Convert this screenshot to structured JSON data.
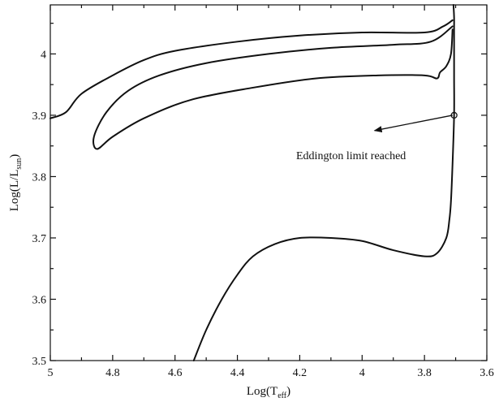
{
  "chart_data": {
    "type": "line",
    "xlabel": "Log(T",
    "xlabel_sub": "eff",
    "xlabel_tail": ")",
    "ylabel": "Log(L/L",
    "ylabel_sub": "sun",
    "ylabel_tail": ")",
    "xlim": [
      5.0,
      3.6
    ],
    "ylim": [
      3.5,
      4.08
    ],
    "x_reversed": true,
    "xticks": [
      5.0,
      4.8,
      4.6,
      4.4,
      4.2,
      4.0,
      3.8,
      3.6
    ],
    "xtick_labels": [
      "5",
      "4.8",
      "4.6",
      "4.4",
      "4.2",
      "4",
      "3.8",
      "3.6"
    ],
    "yticks": [
      3.5,
      3.6,
      3.7,
      3.8,
      3.9,
      4.0
    ],
    "ytick_labels": [
      "3.5",
      "3.6",
      "3.7",
      "3.8",
      "3.9",
      "4"
    ],
    "grid": false,
    "series": [
      {
        "points": [
          [
            4.54,
            3.5
          ],
          [
            4.5,
            3.55
          ],
          [
            4.45,
            3.6
          ],
          [
            4.4,
            3.64
          ],
          [
            4.35,
            3.67
          ],
          [
            4.28,
            3.69
          ],
          [
            4.2,
            3.7
          ],
          [
            4.1,
            3.7
          ],
          [
            4.0,
            3.695
          ],
          [
            3.9,
            3.68
          ],
          [
            3.8,
            3.67
          ],
          [
            3.76,
            3.675
          ],
          [
            3.73,
            3.7
          ],
          [
            3.72,
            3.73
          ],
          [
            3.715,
            3.76
          ],
          [
            3.71,
            3.82
          ],
          [
            3.705,
            3.9
          ],
          [
            3.705,
            3.96
          ],
          [
            3.705,
            4.0
          ],
          [
            3.705,
            4.04
          ],
          [
            3.705,
            4.06
          ],
          [
            3.707,
            4.08
          ]
        ]
      },
      {
        "points": [
          [
            3.71,
            4.055
          ],
          [
            3.74,
            4.045
          ],
          [
            3.8,
            4.035
          ],
          [
            4.0,
            4.035
          ],
          [
            4.2,
            4.03
          ],
          [
            4.4,
            4.02
          ],
          [
            4.6,
            4.005
          ],
          [
            4.7,
            3.99
          ],
          [
            4.8,
            3.965
          ],
          [
            4.9,
            3.935
          ],
          [
            4.95,
            3.905
          ],
          [
            5.0,
            3.895
          ]
        ]
      },
      {
        "points": [
          [
            3.71,
            4.045
          ],
          [
            3.78,
            4.02
          ],
          [
            3.9,
            4.015
          ],
          [
            4.1,
            4.01
          ],
          [
            4.3,
            4.0
          ],
          [
            4.5,
            3.985
          ],
          [
            4.65,
            3.965
          ],
          [
            4.75,
            3.94
          ],
          [
            4.82,
            3.905
          ],
          [
            4.86,
            3.865
          ],
          [
            4.85,
            3.845
          ],
          [
            4.8,
            3.865
          ],
          [
            4.7,
            3.895
          ],
          [
            4.55,
            3.925
          ],
          [
            4.35,
            3.945
          ],
          [
            4.15,
            3.96
          ],
          [
            3.95,
            3.965
          ],
          [
            3.8,
            3.965
          ],
          [
            3.76,
            3.96
          ],
          [
            3.75,
            3.97
          ],
          [
            3.73,
            3.98
          ],
          [
            3.715,
            4.0
          ],
          [
            3.71,
            4.04
          ]
        ]
      }
    ],
    "annotations": [
      {
        "text": "Eddington limit reached",
        "marker_point": [
          3.705,
          3.9
        ],
        "arrow_from": [
          3.71,
          3.9
        ],
        "arrow_to": [
          3.96,
          3.875
        ]
      }
    ]
  }
}
